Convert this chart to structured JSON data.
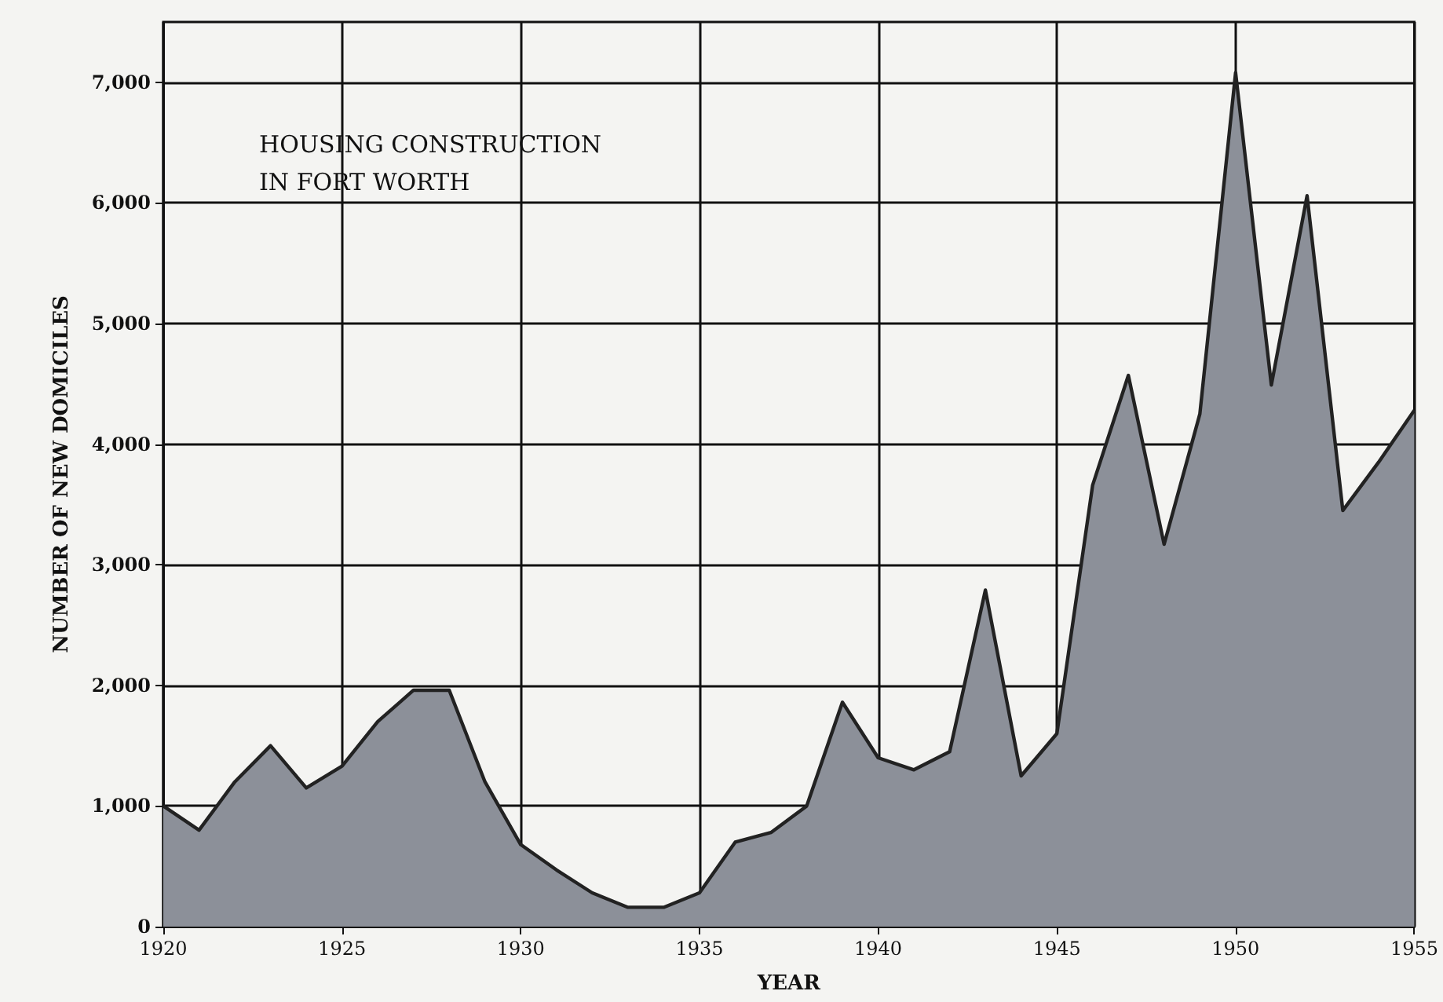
{
  "chart_data": {
    "type": "area",
    "title": "HOUSING CONSTRUCTION\nIN FORT WORTH",
    "xlabel": "YEAR",
    "ylabel": "NUMBER OF NEW DOMICILES",
    "x": [
      1920,
      1921,
      1922,
      1923,
      1924,
      1925,
      1926,
      1927,
      1928,
      1929,
      1930,
      1931,
      1932,
      1933,
      1934,
      1935,
      1936,
      1937,
      1938,
      1939,
      1940,
      1941,
      1942,
      1943,
      1944,
      1945,
      1946,
      1947,
      1948,
      1949,
      1950,
      1951,
      1952,
      1953,
      1954,
      1955
    ],
    "series": [
      {
        "color": "#8c9099",
        "values": [
          1000,
          800,
          1200,
          1500,
          1150,
          1330,
          1700,
          1960,
          1960,
          1200,
          680,
          470,
          280,
          160,
          160,
          280,
          700,
          780,
          1000,
          1860,
          1400,
          1300,
          1450,
          2790,
          1250,
          1600,
          3660,
          4570,
          3170,
          4250,
          7080,
          4490,
          6060,
          3450,
          3850,
          4280
        ]
      }
    ],
    "xlim": [
      1920,
      1955
    ],
    "xticks": [
      1920,
      1925,
      1930,
      1935,
      1940,
      1945,
      1950,
      1955
    ],
    "ylim": [
      0,
      7500
    ],
    "yticks": [
      {
        "value": 0,
        "label": "0"
      },
      {
        "value": 1000,
        "label": "1,000"
      },
      {
        "value": 2000,
        "label": "2,000"
      },
      {
        "value": 3000,
        "label": "3,000"
      },
      {
        "value": 4000,
        "label": "4,000"
      },
      {
        "value": 5000,
        "label": "5,000"
      },
      {
        "value": 6000,
        "label": "6,000"
      },
      {
        "value": 7000,
        "label": "7,000"
      }
    ],
    "grid": true,
    "marker": "none",
    "line_style": "solid"
  }
}
